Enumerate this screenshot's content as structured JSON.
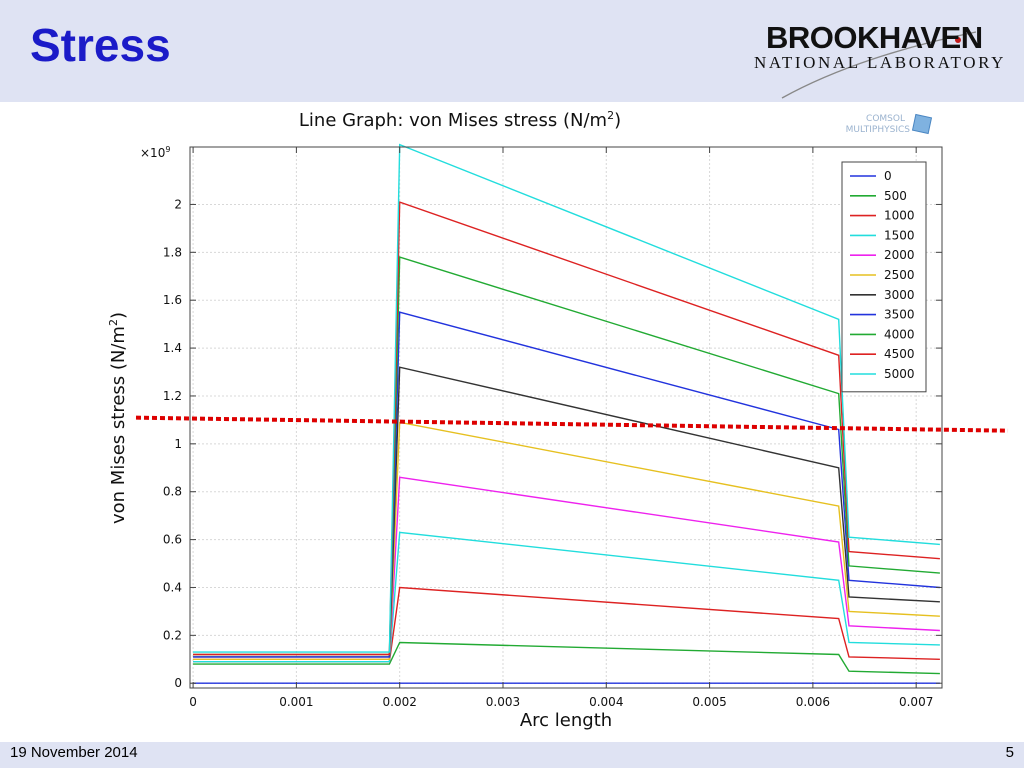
{
  "slide": {
    "title": "Stress",
    "logo_name": "BROOKHAVEN",
    "logo_subtitle": "NATIONAL LABORATORY",
    "date": "19 November 2014",
    "page_number": "5"
  },
  "colors": {
    "title": "#1b1bc8",
    "header_band": "#dfe3f3",
    "threshold_line": "#dd0000"
  },
  "chart_data": {
    "type": "line",
    "title": "Line Graph: von Mises stress (N/m²)",
    "title_main": "Line Graph: von Mises stress (N/m",
    "title_sup": "2",
    "title_end": ")",
    "watermark_line1": "COMSOL",
    "watermark_line2": "MULTIPHYSICS",
    "xlabel": "Arc length",
    "ylabel": "von Mises stress (N/m²)",
    "ylabel_main": "von Mises stress (N/m",
    "ylabel_sup": "2",
    "ylabel_end": ")",
    "y_exponent_label": "×10",
    "y_exponent_power": "9",
    "xlim": [
      -3e-05,
      0.00725
    ],
    "ylim": [
      -0.02,
      2.24
    ],
    "xticks": [
      0,
      0.001,
      0.002,
      0.003,
      0.004,
      0.005,
      0.006,
      0.007
    ],
    "xtick_labels": [
      "0",
      "0.001",
      "0.002",
      "0.003",
      "0.004",
      "0.005",
      "0.006",
      "0.007"
    ],
    "yticks": [
      0,
      0.2,
      0.4,
      0.6,
      0.8,
      1,
      1.2,
      1.4,
      1.6,
      1.8,
      2
    ],
    "ytick_labels": [
      "0",
      "0.2",
      "0.4",
      "0.6",
      "0.8",
      "1",
      "1.2",
      "1.4",
      "1.6",
      "1.8",
      "2"
    ],
    "grid": true,
    "legend_position": "top-right",
    "x": [
      0,
      0.0019,
      0.002,
      0.00625,
      0.00635,
      0.00723
    ],
    "series": [
      {
        "name": "0",
        "color": "#2233dd",
        "values": [
          0.0,
          0.0,
          0.0,
          0.0,
          0.0,
          0.0
        ]
      },
      {
        "name": "500",
        "color": "#22aa33",
        "values": [
          0.08,
          0.08,
          0.17,
          0.12,
          0.05,
          0.04
        ]
      },
      {
        "name": "1000",
        "color": "#dd2222",
        "values": [
          0.09,
          0.09,
          0.4,
          0.27,
          0.11,
          0.1
        ]
      },
      {
        "name": "1500",
        "color": "#22dddd",
        "values": [
          0.09,
          0.09,
          0.63,
          0.43,
          0.17,
          0.16
        ]
      },
      {
        "name": "2000",
        "color": "#ee22ee",
        "values": [
          0.1,
          0.1,
          0.86,
          0.59,
          0.24,
          0.22
        ]
      },
      {
        "name": "2500",
        "color": "#e6c020",
        "values": [
          0.1,
          0.1,
          1.09,
          0.74,
          0.3,
          0.28
        ]
      },
      {
        "name": "3000",
        "color": "#333333",
        "values": [
          0.11,
          0.11,
          1.32,
          0.9,
          0.36,
          0.34
        ]
      },
      {
        "name": "3500",
        "color": "#2233dd",
        "values": [
          0.11,
          0.11,
          1.55,
          1.06,
          0.43,
          0.4
        ]
      },
      {
        "name": "4000",
        "color": "#22aa33",
        "values": [
          0.12,
          0.12,
          1.78,
          1.21,
          0.49,
          0.46
        ]
      },
      {
        "name": "4500",
        "color": "#dd2222",
        "values": [
          0.12,
          0.12,
          2.01,
          1.37,
          0.55,
          0.52
        ]
      },
      {
        "name": "5000",
        "color": "#22dddd",
        "values": [
          0.13,
          0.13,
          2.25,
          1.52,
          0.61,
          0.58
        ]
      }
    ],
    "threshold_line": {
      "y": 1.08
    }
  }
}
